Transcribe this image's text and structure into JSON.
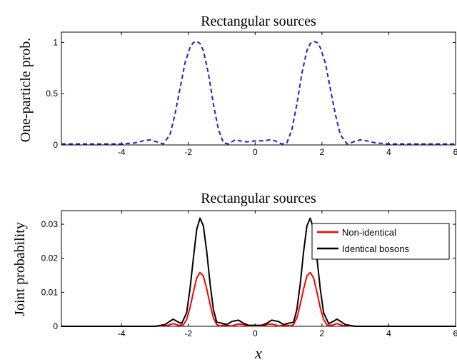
{
  "chart_data": [
    {
      "type": "line",
      "title": "Rectangular sources",
      "xlabel": "",
      "ylabel": "One-particle prob.",
      "xlim": [
        -5.8,
        6
      ],
      "ylim": [
        0,
        1.1
      ],
      "xticks": [
        -4,
        -2,
        0,
        2,
        4,
        6
      ],
      "xtick_labels": [
        "-4",
        "-2",
        "0",
        "2",
        "4",
        "6"
      ],
      "yticks": [
        0,
        0.5,
        1
      ],
      "ytick_labels": [
        "0",
        "0.5",
        "1"
      ],
      "grid": false,
      "series": [
        {
          "color": "#1f1fd6",
          "style": "dashed",
          "x": [
            -5.8,
            -4.5,
            -4.0,
            -3.6,
            -3.35,
            -3.15,
            -2.95,
            -2.75,
            -2.55,
            -2.4,
            -2.25,
            -2.1,
            -1.95,
            -1.85,
            -1.75,
            -1.65,
            -1.55,
            -1.4,
            -1.25,
            -1.1,
            -0.95,
            -0.8,
            -0.6,
            -0.45,
            -0.25,
            0,
            0.25,
            0.45,
            0.6,
            0.8,
            0.95,
            1.1,
            1.25,
            1.4,
            1.55,
            1.65,
            1.75,
            1.85,
            1.95,
            2.1,
            2.25,
            2.4,
            2.55,
            2.75,
            2.95,
            3.15,
            3.35,
            3.6,
            4.0,
            4.5,
            6.0
          ],
          "y": [
            0.01,
            0.01,
            0.01,
            0.02,
            0.04,
            0.05,
            0.03,
            0.01,
            0.1,
            0.3,
            0.55,
            0.8,
            0.95,
            1.0,
            1.01,
            0.99,
            0.92,
            0.7,
            0.4,
            0.15,
            0.02,
            0.01,
            0.05,
            0.04,
            0.03,
            0.04,
            0.04,
            0.05,
            0.04,
            0.01,
            0.02,
            0.15,
            0.4,
            0.7,
            0.92,
            0.99,
            1.01,
            1.0,
            0.95,
            0.8,
            0.55,
            0.3,
            0.1,
            0.01,
            0.03,
            0.05,
            0.04,
            0.02,
            0.01,
            0.01,
            0.01
          ]
        }
      ]
    },
    {
      "type": "line",
      "title": "Rectangular sources",
      "xlabel": "x",
      "ylabel": "Joint probability",
      "xlim": [
        -5.8,
        6
      ],
      "ylim": [
        0,
        0.034
      ],
      "xticks": [
        -4,
        -2,
        0,
        2,
        4,
        6
      ],
      "xtick_labels": [
        "-4",
        "-2",
        "0",
        "2",
        "4",
        "6"
      ],
      "yticks": [
        0,
        0.01,
        0.02,
        0.03
      ],
      "ytick_labels": [
        "0",
        "0.01",
        "0.02",
        "0.03"
      ],
      "grid": false,
      "legend": "top-right",
      "series": [
        {
          "name": "Non-identical",
          "color": "#ff0000",
          "style": "solid",
          "x": [
            -5.8,
            -3.0,
            -2.6,
            -2.45,
            -2.3,
            -2.15,
            -2.05,
            -1.95,
            -1.85,
            -1.75,
            -1.65,
            -1.55,
            -1.45,
            -1.35,
            -1.25,
            -1.15,
            -1.05,
            -0.95,
            -0.85,
            -0.7,
            -0.5,
            -0.35,
            -0.2,
            0,
            0.2,
            0.35,
            0.5,
            0.7,
            0.85,
            0.95,
            1.05,
            1.15,
            1.25,
            1.35,
            1.45,
            1.55,
            1.65,
            1.75,
            1.85,
            1.95,
            2.05,
            2.15,
            2.3,
            2.45,
            2.6,
            3.0,
            6.0
          ],
          "y": [
            0,
            0,
            0.0003,
            0.0008,
            0.0003,
            0.0004,
            0.002,
            0.0055,
            0.01,
            0.0142,
            0.0158,
            0.0148,
            0.011,
            0.0065,
            0.0025,
            0.0005,
            0.0001,
            0.0004,
            0.0003,
            0.0001,
            0.0007,
            0.0005,
            0.0001,
            0.0001,
            0.0001,
            0.0005,
            0.0007,
            0.0001,
            0.0003,
            0.0004,
            0.0001,
            0.0005,
            0.0025,
            0.0065,
            0.011,
            0.0148,
            0.0158,
            0.0142,
            0.01,
            0.0055,
            0.002,
            0.0004,
            0.0003,
            0.0008,
            0.0003,
            0,
            0
          ]
        },
        {
          "name": "Identical bosons",
          "color": "#000000",
          "style": "solid",
          "x": [
            -5.8,
            -3.0,
            -2.7,
            -2.55,
            -2.45,
            -2.35,
            -2.2,
            -2.05,
            -1.95,
            -1.85,
            -1.75,
            -1.65,
            -1.55,
            -1.45,
            -1.35,
            -1.25,
            -1.15,
            -1.05,
            -0.95,
            -0.85,
            -0.7,
            -0.5,
            -0.35,
            -0.2,
            0,
            0.2,
            0.35,
            0.5,
            0.7,
            0.85,
            0.95,
            1.05,
            1.15,
            1.25,
            1.35,
            1.45,
            1.55,
            1.65,
            1.75,
            1.85,
            1.95,
            2.05,
            2.2,
            2.35,
            2.45,
            2.55,
            2.7,
            3.0,
            6.0
          ],
          "y": [
            0,
            0,
            0.0005,
            0.0015,
            0.0021,
            0.0015,
            0.0008,
            0.004,
            0.011,
            0.02,
            0.0285,
            0.0318,
            0.0295,
            0.022,
            0.0125,
            0.005,
            0.0012,
            0.001,
            0.0008,
            0.0005,
            0.0014,
            0.0018,
            0.0009,
            0.0003,
            0.0003,
            0.0003,
            0.0009,
            0.0018,
            0.0014,
            0.0005,
            0.0008,
            0.001,
            0.0012,
            0.005,
            0.0125,
            0.022,
            0.0295,
            0.0318,
            0.0285,
            0.02,
            0.011,
            0.004,
            0.0008,
            0.0015,
            0.0021,
            0.0015,
            0.0005,
            0,
            0
          ]
        }
      ]
    }
  ]
}
